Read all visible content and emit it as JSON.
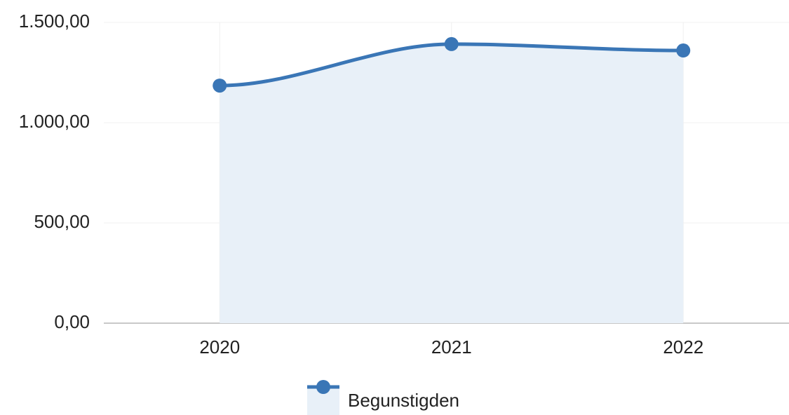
{
  "chart_data": {
    "type": "line",
    "categories": [
      "2020",
      "2021",
      "2022"
    ],
    "series": [
      {
        "name": "Begunstigden",
        "color": "#3a76b6",
        "fill": "#e8f0f8",
        "values": [
          1185,
          1392,
          1360
        ]
      }
    ],
    "ylim": [
      0,
      1500
    ],
    "yticks": [
      {
        "value": 0,
        "label": "0,00"
      },
      {
        "value": 500,
        "label": "500,00"
      },
      {
        "value": 1000,
        "label": "1.000,00"
      },
      {
        "value": 1500,
        "label": "1.500,00"
      }
    ],
    "grid": true,
    "legend": "bottom"
  }
}
